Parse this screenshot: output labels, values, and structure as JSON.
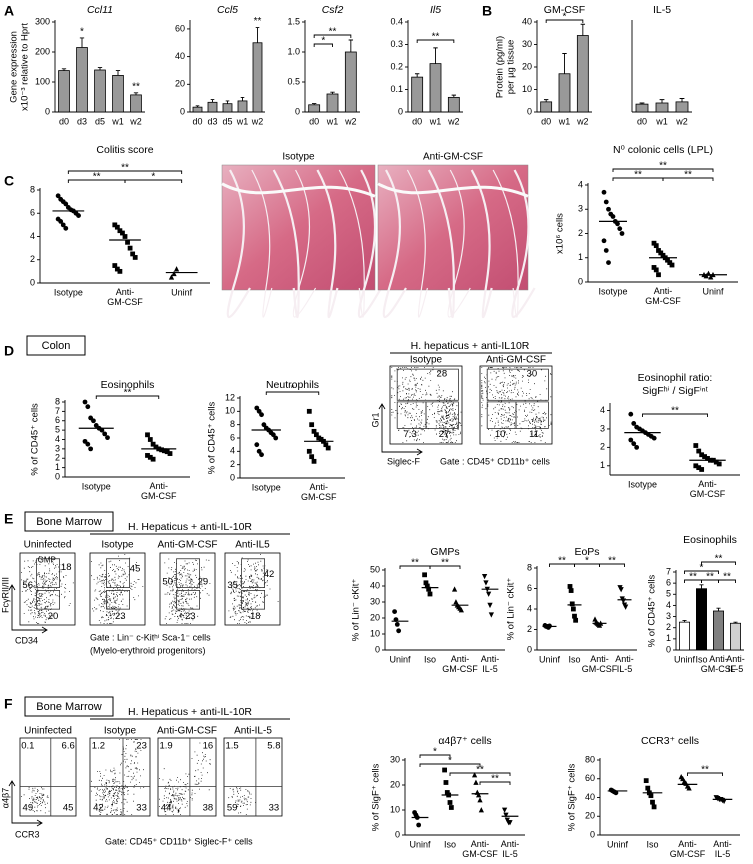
{
  "panel_letters": [
    "A",
    "B",
    "C",
    "D",
    "E",
    "F"
  ],
  "section_tags": [
    "Colon",
    "Bone Marrow",
    "Bone Marrow"
  ],
  "histology": {
    "labels": [
      "Isotype",
      "Anti-GM-CSF"
    ]
  },
  "flow_panels": [
    {
      "header": "H. hepaticus + anti-IL10R",
      "y_axis": "Gr1",
      "x_axis": "Siglec-F",
      "gate": "Gate : CD45⁺ CD11b⁺ cells",
      "plots": [
        {
          "label": "Isotype",
          "quadrants": [
            "28",
            "7.3",
            "27"
          ]
        },
        {
          "label": "Anti-GM-CSF",
          "quadrants": [
            "30",
            "10",
            "11"
          ]
        }
      ]
    },
    {
      "header": "H. Hepaticus + anti-IL-10R",
      "y_axis": "FcγRII/III",
      "x_axis": "CD34",
      "gate": [
        "Gate : Lin⁻ c-Kitʰⁱ Sca-1⁻ cells",
        "(Myelo-erythroid progenitors)"
      ],
      "plots": [
        {
          "label": "Uninfected",
          "gate_label": "GMP",
          "quadrants": [
            "56",
            "18",
            "20"
          ]
        },
        {
          "label": "Isotype",
          "quadrants": [
            "45",
            "23"
          ]
        },
        {
          "label": "Anti-GM-CSF",
          "quadrants": [
            "50",
            "29",
            "23"
          ]
        },
        {
          "label": "Anti-IL5",
          "quadrants": [
            "42",
            "35",
            "18"
          ]
        }
      ]
    },
    {
      "header": "H. Hepaticus + anti-IL-10R",
      "y_axis": "α4β7",
      "x_axis": "CCR3",
      "gate": "Gate: CD45⁺ CD11b⁺ Siglec-F⁺ cells",
      "plots": [
        {
          "label": "Uninfected",
          "quadrants": [
            "0.1",
            "6.6",
            "49",
            "45"
          ]
        },
        {
          "label": "Isotype",
          "quadrants": [
            "1.2",
            "23",
            "42",
            "33"
          ]
        },
        {
          "label": "Anti-GM-CSF",
          "quadrants": [
            "1.9",
            "16",
            "44",
            "38"
          ]
        },
        {
          "label": "Anti-IL-5",
          "quadrants": [
            "1.5",
            "5.8",
            "59",
            "33"
          ]
        }
      ]
    }
  ],
  "chart_data": [
    {
      "type": "bar",
      "title": "Ccl11",
      "title_style": "italic",
      "ylabel": [
        "Gene expression",
        "x10⁻³ relative to Hprt"
      ],
      "categories": [
        "d0",
        "d3",
        "d5",
        "w1",
        "w2"
      ],
      "values": [
        138,
        215,
        140,
        122,
        57
      ],
      "errors": [
        6,
        32,
        8,
        16,
        7
      ],
      "color": "#999999",
      "ylim": [
        0,
        300
      ],
      "yticks": [
        0,
        100,
        200,
        300
      ],
      "annotations": [
        {
          "category": "d3",
          "label": "*"
        },
        {
          "category": "w2",
          "label": "**"
        }
      ]
    },
    {
      "type": "bar",
      "title": "Ccl5",
      "title_style": "italic",
      "categories": [
        "d0",
        "d3",
        "d5",
        "w1",
        "w2"
      ],
      "values": [
        3.5,
        7,
        6,
        8,
        50
      ],
      "errors": [
        1,
        2,
        2,
        2.5,
        11
      ],
      "color": "#999999",
      "ylim": [
        0,
        65
      ],
      "yticks": [
        0,
        20,
        40,
        60
      ],
      "annotations": [
        {
          "category": "w2",
          "label": "**"
        }
      ]
    },
    {
      "type": "bar",
      "title": "Csf2",
      "title_style": "italic",
      "categories": [
        "d0",
        "w1",
        "w2"
      ],
      "values": [
        0.12,
        0.3,
        1.0
      ],
      "errors": [
        0.02,
        0.03,
        0.2
      ],
      "color": "#999999",
      "ylim": [
        0,
        1.5
      ],
      "yticks": [
        0,
        0.5,
        {
          "value": 1,
          "label": "1.0"
        },
        1.5
      ],
      "brackets": [
        {
          "between": [
            "d0",
            "w1"
          ],
          "label": "*"
        },
        {
          "between": [
            "d0",
            "w2"
          ],
          "label": "**"
        }
      ]
    },
    {
      "type": "bar",
      "title": "Il5",
      "title_style": "italic",
      "categories": [
        "d0",
        "w1",
        "w2"
      ],
      "values": [
        0.155,
        0.215,
        0.065
      ],
      "errors": [
        0.015,
        0.07,
        0.01
      ],
      "color": "#999999",
      "ylim": [
        0,
        0.4
      ],
      "yticks": [
        0,
        0.1,
        0.2,
        0.3,
        0.4
      ],
      "brackets": [
        {
          "between": [
            "d0",
            "w2"
          ],
          "label": "**"
        }
      ]
    },
    {
      "type": "bar",
      "title": "GM-CSF",
      "ylabel": [
        "Protein (pg/ml)",
        "per µg tissue"
      ],
      "categories": [
        "d0",
        "w1",
        "w2"
      ],
      "values": [
        4.5,
        17,
        34
      ],
      "errors": [
        1,
        9,
        5
      ],
      "color": "#999999",
      "ylim": [
        0,
        40
      ],
      "yticks": [
        0,
        10,
        20,
        30,
        40
      ],
      "brackets": [
        {
          "between": [
            "d0",
            "w2"
          ],
          "label": "*"
        }
      ]
    },
    {
      "type": "bar",
      "title": "IL-5",
      "categories": [
        "d0",
        "w1",
        "w2"
      ],
      "values": [
        3.5,
        4,
        4.5
      ],
      "errors": [
        0.5,
        1.5,
        1.5
      ],
      "color": "#999999",
      "ylim": [
        0,
        40
      ]
    },
    {
      "type": "dot",
      "title": "Colitis score",
      "categories": [
        "Isotype",
        "Anti-GM-CSF",
        "Uninf"
      ],
      "markers": [
        "circle",
        "square",
        "triangle"
      ],
      "points": [
        [
          7.5,
          7.2,
          7,
          6.8,
          6.5,
          6.3,
          6.2,
          6,
          5.8,
          5.5,
          5.3,
          5,
          4.7
        ],
        [
          5,
          4.8,
          4.5,
          4.3,
          4,
          3.5,
          3,
          2.5,
          2.2,
          1.5,
          1.2,
          1
        ],
        [
          0.5,
          0.8,
          1.2
        ]
      ],
      "means": [
        6.2,
        3.7,
        0.9
      ],
      "ylim": [
        0,
        8
      ],
      "yticks": [
        0,
        2,
        4,
        6,
        8
      ],
      "brackets": [
        {
          "between": [
            "Isotype",
            "Anti-GM-CSF"
          ],
          "label": "**"
        },
        {
          "between": [
            "Anti-GM-CSF",
            "Uninf"
          ],
          "label": "*"
        },
        {
          "between": [
            "Isotype",
            "Uninf"
          ],
          "label": "**"
        }
      ]
    },
    {
      "type": "dot",
      "title": "N⁰ colonic cells (LPL)",
      "ylabel": "x10⁶ cells",
      "categories": [
        "Isotype",
        "Anti-GM-CSF",
        "Uninf"
      ],
      "markers": [
        "circle",
        "square",
        "triangle"
      ],
      "points": [
        [
          3.7,
          3.3,
          3.0,
          2.8,
          2.7,
          2.5,
          2.4,
          2.2,
          2.0,
          1.7,
          1.3,
          0.8
        ],
        [
          1.6,
          1.5,
          1.3,
          1.2,
          1.1,
          1.0,
          0.9,
          0.8,
          0.7,
          0.6,
          0.5,
          0.3
        ],
        [
          0.3,
          0.25,
          0.35,
          0.2,
          0.3
        ]
      ],
      "means": [
        2.5,
        1.0,
        0.3
      ],
      "ylim": [
        0,
        4
      ],
      "yticks": [
        0,
        1,
        2,
        3,
        4
      ],
      "brackets": [
        {
          "between": [
            "Isotype",
            "Anti-GM-CSF"
          ],
          "label": "**"
        },
        {
          "between": [
            "Anti-GM-CSF",
            "Uninf"
          ],
          "label": "**"
        },
        {
          "between": [
            "Isotype",
            "Uninf"
          ],
          "label": "**"
        }
      ]
    },
    {
      "type": "dot",
      "title": "Eosinophils",
      "ylabel": "% of CD45⁺ cells",
      "categories": [
        "Isotype",
        "Anti-GM-CSF"
      ],
      "markers": [
        "circle",
        "square"
      ],
      "points": [
        [
          8,
          7.5,
          6.3,
          6,
          5.5,
          5.2,
          5,
          4.6,
          4.2,
          3.8,
          3.5,
          3
        ],
        [
          4.5,
          4,
          3.5,
          3.2,
          3,
          2.9,
          2.8,
          2.7,
          2.5,
          2.3,
          2.1,
          1.9
        ]
      ],
      "means": [
        5.2,
        3.0
      ],
      "ylim": [
        0,
        8
      ],
      "yticks": [
        0,
        1,
        2,
        3,
        4,
        5,
        6,
        7,
        8
      ],
      "brackets": [
        {
          "between": [
            "Isotype",
            "Anti-GM-CSF"
          ],
          "label": "**"
        }
      ]
    },
    {
      "type": "dot",
      "title": "Neutrophils",
      "ylabel": "% of CD45⁺ cells",
      "categories": [
        "Isotype",
        "Anti-GM-CSF"
      ],
      "markers": [
        "circle",
        "square"
      ],
      "points": [
        [
          10.5,
          10,
          9.5,
          8,
          7.5,
          7.2,
          6.8,
          6.5,
          6,
          5,
          4,
          3.5
        ],
        [
          10,
          8,
          7,
          6.5,
          6,
          5.8,
          5.5,
          5,
          4.5,
          4,
          3.2,
          2.5
        ]
      ],
      "means": [
        7.2,
        5.5
      ],
      "ylim": [
        0,
        12
      ],
      "yticks": [
        0,
        2,
        4,
        6,
        8,
        10,
        12
      ],
      "brackets": [
        {
          "between": [
            "Isotype",
            "Anti-GM-CSF"
          ],
          "label": "*"
        }
      ]
    },
    {
      "type": "dot",
      "title": [
        "Eosinophil ratio:",
        "SigFʰⁱ / SigFⁱⁿᵗ"
      ],
      "categories": [
        "Isotype",
        "Anti-GM-CSF"
      ],
      "markers": [
        "circle",
        "square"
      ],
      "points": [
        [
          3.8,
          3.3,
          3.1,
          3,
          2.9,
          2.8,
          2.7,
          2.6,
          2.5,
          2.4,
          2.2,
          2
        ],
        [
          2.1,
          1.8,
          1.6,
          1.5,
          1.4,
          1.3,
          1.3,
          1.2,
          1.1,
          1,
          0.9,
          0.8
        ]
      ],
      "means": [
        2.8,
        1.3
      ],
      "ylim": [
        0.5,
        4.3
      ],
      "yticks": [
        1,
        2,
        3,
        4
      ],
      "brackets": [
        {
          "between": [
            "Isotype",
            "Anti-GM-CSF"
          ],
          "label": "**"
        }
      ]
    },
    {
      "type": "dot",
      "title": "GMPs",
      "ylabel": "% of Lin⁻ cKit⁺",
      "categories": [
        "Uninf",
        "Iso",
        "Anti-GM-CSF",
        "Anti-IL-5"
      ],
      "markers": [
        "circle",
        "square",
        "triangle",
        "triangle-down"
      ],
      "points": [
        [
          24,
          19,
          16,
          12
        ],
        [
          47,
          42,
          40,
          38,
          35
        ],
        [
          38,
          30,
          28,
          27,
          26,
          25
        ],
        [
          46,
          42,
          38,
          35,
          28,
          22
        ]
      ],
      "means": [
        18,
        39,
        28,
        38
      ],
      "ylim": [
        0,
        50
      ],
      "yticks": [
        0,
        10,
        20,
        30,
        40,
        50
      ],
      "brackets": [
        {
          "between": [
            "Uninf",
            "Iso"
          ],
          "label": "**"
        },
        {
          "between": [
            "Iso",
            "Anti-GM-CSF"
          ],
          "label": "**"
        }
      ]
    },
    {
      "type": "dot",
      "title": "EoPs",
      "ylabel": "% of Lin⁻ cKit⁺",
      "categories": [
        "Uninf",
        "Iso",
        "Anti-GM-CSF",
        "Anti-IL-5"
      ],
      "markers": [
        "circle",
        "square",
        "triangle",
        "triangle-down"
      ],
      "points": [
        [
          2.4,
          2.3,
          2.3,
          2.2,
          2.35
        ],
        [
          6.2,
          5.8,
          4.5,
          4,
          3.3,
          2.9
        ],
        [
          3,
          2.7,
          2.6,
          2.5,
          2.4,
          2.6
        ],
        [
          6.1,
          5.9,
          5,
          4.8,
          4.4,
          4.2
        ]
      ],
      "means": [
        2.3,
        4.4,
        2.6,
        4.9
      ],
      "ylim": [
        0,
        8
      ],
      "yticks": [
        0,
        2,
        4,
        6,
        8
      ],
      "brackets": [
        {
          "between": [
            "Uninf",
            "Iso"
          ],
          "label": "**"
        },
        {
          "between": [
            "Iso",
            "Anti-GM-CSF"
          ],
          "label": "*"
        },
        {
          "between": [
            "Anti-GM-CSF",
            "Anti-IL-5"
          ],
          "label": "**"
        }
      ]
    },
    {
      "type": "bar",
      "title": "Eosinophils",
      "ylabel": "% of CD45⁺ cells",
      "categories": [
        "Uninf",
        "Iso",
        "Anti-GM-CSF",
        "Anti-IL-5"
      ],
      "values": [
        2.5,
        5.5,
        3.5,
        2.4
      ],
      "errors": [
        0.15,
        0.35,
        0.25,
        0.1
      ],
      "colors": [
        "#ffffff",
        "#000000",
        "#808080",
        "#d0d0d0"
      ],
      "ylim": [
        0,
        7
      ],
      "yticks": [
        0,
        1,
        2,
        3,
        4,
        5,
        6,
        7
      ],
      "brackets": [
        {
          "between": [
            "Uninf",
            "Iso"
          ],
          "label": "**"
        },
        {
          "between": [
            "Iso",
            "Anti-GM-CSF"
          ],
          "label": "**"
        },
        {
          "between": [
            "Anti-GM-CSF",
            "Anti-IL-5"
          ],
          "label": "**"
        },
        {
          "between": [
            "Uninf",
            "Anti-GM-CSF"
          ],
          "label": "*"
        },
        {
          "between": [
            "Iso",
            "Anti-IL-5"
          ],
          "label": "**"
        }
      ]
    },
    {
      "type": "dot",
      "title": "α4β7⁺ cells",
      "ylabel": "% of SigF⁺ cells",
      "categories": [
        "Uninf",
        "Iso",
        "Anti-GM-CSF",
        "Anti-IL-5"
      ],
      "markers": [
        "circle",
        "square",
        "triangle",
        "triangle-down"
      ],
      "points": [
        [
          9,
          8,
          7,
          4
        ],
        [
          26,
          21,
          17,
          16,
          13,
          11
        ],
        [
          24,
          21,
          17,
          16,
          14,
          10
        ],
        [
          10,
          8,
          6,
          5,
          5
        ]
      ],
      "means": [
        7,
        16,
        16.5,
        7.5
      ],
      "ylim": [
        0,
        30
      ],
      "yticks": [
        0,
        10,
        20,
        30
      ],
      "brackets": [
        {
          "between": [
            "Anti-GM-CSF",
            "Anti-IL-5"
          ],
          "label": "**"
        },
        {
          "between": [
            "Iso",
            "Anti-IL-5"
          ],
          "label": "**"
        },
        {
          "between": [
            "Uninf",
            "Anti-GM-CSF"
          ],
          "label": "*"
        },
        {
          "between": [
            "Uninf",
            "Iso"
          ],
          "label": "*"
        }
      ]
    },
    {
      "type": "dot",
      "title": "CCR3⁺ cells",
      "ylabel": "% of SigF⁺ cells",
      "categories": [
        "Uninf",
        "Iso",
        "Anti-GM-CSF",
        "Anti-IL-5"
      ],
      "markers": [
        "circle",
        "square",
        "triangle",
        "triangle-down"
      ],
      "points": [
        [
          48,
          47,
          46,
          45
        ],
        [
          58,
          50,
          45,
          42,
          35,
          30
        ],
        [
          62,
          60,
          57,
          55,
          52,
          50
        ],
        [
          40,
          39,
          38,
          38,
          37,
          36
        ]
      ],
      "means": [
        47,
        45,
        54,
        38
      ],
      "ylim": [
        0,
        80
      ],
      "yticks": [
        0,
        20,
        40,
        60,
        80
      ],
      "brackets": [
        {
          "between": [
            "Anti-GM-CSF",
            "Anti-IL-5"
          ],
          "label": "**"
        }
      ]
    }
  ]
}
